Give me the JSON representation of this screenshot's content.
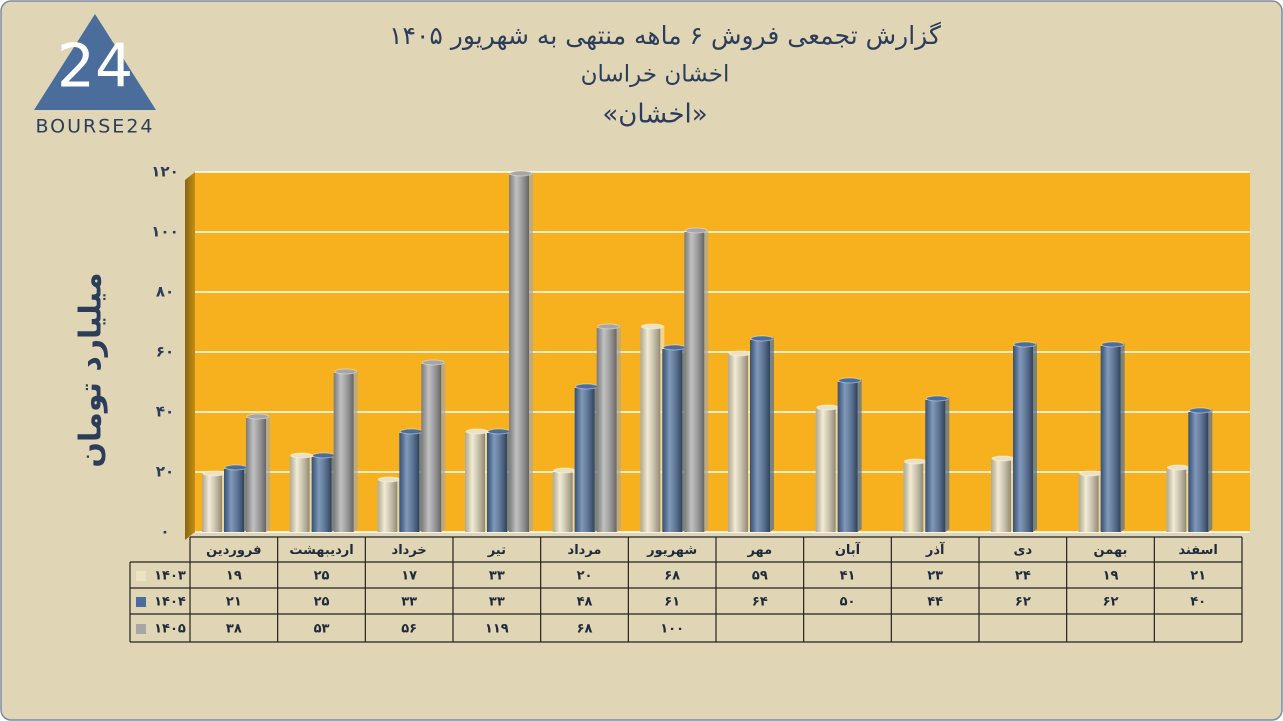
{
  "logo": {
    "mark": "24",
    "text": "BOURSE24"
  },
  "chart_data": {
    "type": "bar",
    "title": "گزارش تجمعی فروش ۶ ماهه منتهی به شهریور ۱۴۰۵",
    "subtitle": "اخشان خراسان",
    "symbol": "«اخشان»",
    "y_label": "میلیارد تومان",
    "categories": [
      "فروردین",
      "اردیبهشت",
      "خرداد",
      "تیر",
      "مرداد",
      "شهریور",
      "مهر",
      "آبان",
      "آذر",
      "دی",
      "بهمن",
      "اسفند"
    ],
    "series": [
      {
        "name": "۱۴۰۳",
        "color": "#ece2c2",
        "values": [
          19,
          25,
          17,
          33,
          20,
          68,
          59,
          41,
          23,
          24,
          19,
          21
        ],
        "value_labels": [
          "۱۹",
          "۲۵",
          "۱۷",
          "۳۳",
          "۲۰",
          "۶۸",
          "۵۹",
          "۴۱",
          "۲۳",
          "۲۴",
          "۱۹",
          "۲۱"
        ]
      },
      {
        "name": "۱۴۰۴",
        "color": "#4a6d9c",
        "values": [
          21,
          25,
          33,
          33,
          48,
          61,
          64,
          50,
          44,
          62,
          62,
          40
        ],
        "value_labels": [
          "۲۱",
          "۲۵",
          "۳۳",
          "۳۳",
          "۴۸",
          "۶۱",
          "۶۴",
          "۵۰",
          "۴۴",
          "۶۲",
          "۶۲",
          "۴۰"
        ]
      },
      {
        "name": "۱۴۰۵",
        "color": "#a6a6a6",
        "values": [
          38,
          53,
          56,
          119,
          68,
          100,
          null,
          null,
          null,
          null,
          null,
          null
        ],
        "value_labels": [
          "۳۸",
          "۵۳",
          "۵۶",
          "۱۱۹",
          "۶۸",
          "۱۰۰",
          null,
          null,
          null,
          null,
          null,
          null
        ]
      }
    ],
    "ylim": [
      0,
      120
    ],
    "yticks": [
      {
        "value": 0,
        "label": "۰"
      },
      {
        "value": 20,
        "label": "۲۰"
      },
      {
        "value": 40,
        "label": "۴۰"
      },
      {
        "value": 60,
        "label": "۶۰"
      },
      {
        "value": 80,
        "label": "۸۰"
      },
      {
        "value": 100,
        "label": "۱۰۰"
      },
      {
        "value": 120,
        "label": "۱۲۰"
      }
    ],
    "grid": true,
    "plot_color": "#f8b11e"
  }
}
